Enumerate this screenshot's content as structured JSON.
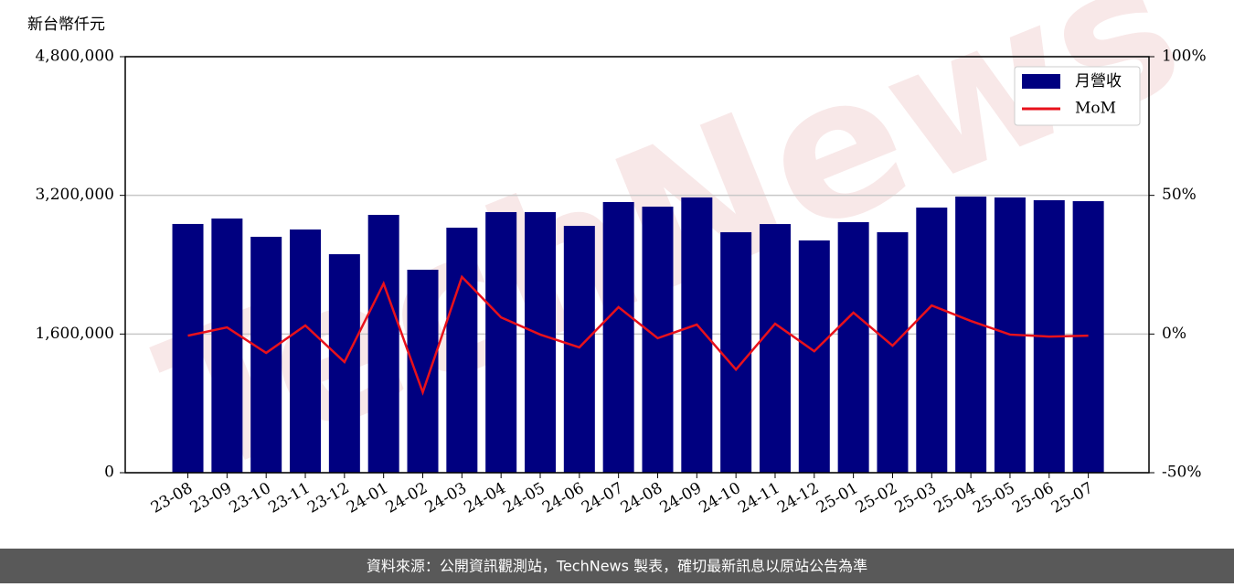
{
  "chart_data": {
    "type": "bar-line",
    "y_label": "新台幣仟元",
    "watermark": "TechNews",
    "footer": "資料來源：公開資訊觀測站，TechNews 製表，確切最新訊息以原站公告為準",
    "categories": [
      "23-08",
      "23-09",
      "23-10",
      "23-11",
      "23-12",
      "24-01",
      "24-02",
      "24-03",
      "24-04",
      "24-05",
      "24-06",
      "24-07",
      "24-08",
      "24-09",
      "24-10",
      "24-11",
      "24-12",
      "25-01",
      "25-02",
      "25-03",
      "25-04",
      "25-05",
      "25-06",
      "25-07"
    ],
    "series": [
      {
        "name": "月營收",
        "type": "bar",
        "color": "#000080",
        "values": [
          2870000,
          2933000,
          2722000,
          2806000,
          2521000,
          2975000,
          2342000,
          2827000,
          3007000,
          3007000,
          2848000,
          3123000,
          3070000,
          3176000,
          2775000,
          2869000,
          2680000,
          2891000,
          2775000,
          3059000,
          3186000,
          3176000,
          3144000,
          3133000
        ]
      },
      {
        "name": "MoM",
        "type": "line",
        "color": "#e8111b",
        "axis": "y2",
        "values": [
          -0.6,
          2.4,
          -6.8,
          3.1,
          -10.1,
          18.2,
          -21.0,
          20.6,
          6.0,
          -0.2,
          -4.8,
          9.7,
          -1.5,
          3.4,
          -12.8,
          3.7,
          -6.2,
          7.7,
          -4.2,
          10.3,
          4.7,
          -0.2,
          -0.9,
          -0.6
        ]
      }
    ],
    "ylim": [
      0,
      4800000
    ],
    "yticks": [
      {
        "value": 0,
        "label": "0"
      },
      {
        "value": 1600000,
        "label": "1,600,000"
      },
      {
        "value": 3200000,
        "label": "3,200,000"
      },
      {
        "value": 4800000,
        "label": "4,800,000"
      }
    ],
    "y2lim": [
      -50,
      100
    ],
    "y2ticks": [
      {
        "value": -50,
        "label": "-50%"
      },
      {
        "value": 0,
        "label": "0%"
      },
      {
        "value": 50,
        "label": "50%"
      },
      {
        "value": 100,
        "label": "100%"
      }
    ],
    "grid": true,
    "legend": "upper right"
  }
}
